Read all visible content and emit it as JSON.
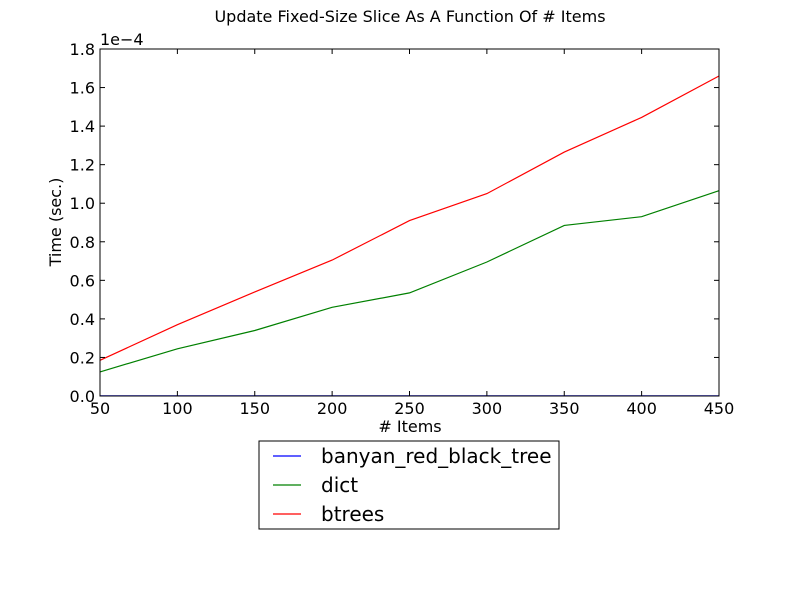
{
  "chart_data": {
    "type": "line",
    "title": "Update Fixed-Size Slice As A Function Of # Items",
    "xlabel": "# Items",
    "ylabel": "Time (sec.)",
    "y_scale_note": "1e−4",
    "xlim": [
      50,
      450
    ],
    "ylim": [
      0.0,
      1.8
    ],
    "x_ticks": [
      50,
      100,
      150,
      200,
      250,
      300,
      350,
      400,
      450
    ],
    "x_tick_labels": [
      "50",
      "100",
      "150",
      "200",
      "250",
      "300",
      "350",
      "400",
      "450"
    ],
    "y_ticks": [
      0.0,
      0.2,
      0.4,
      0.6,
      0.8,
      1.0,
      1.2,
      1.4,
      1.6,
      1.8
    ],
    "y_tick_labels": [
      "0.0",
      "0.2",
      "0.4",
      "0.6",
      "0.8",
      "1.0",
      "1.2",
      "1.4",
      "1.6",
      "1.8"
    ],
    "grid": false,
    "legend_placement": "below",
    "x": [
      50,
      100,
      150,
      200,
      250,
      300,
      350,
      400,
      450
    ],
    "series": [
      {
        "name": "banyan_red_black_tree",
        "color": "#0000ff",
        "values": [
          0.001,
          0.001,
          0.001,
          0.001,
          0.001,
          0.001,
          0.001,
          0.001,
          0.001
        ]
      },
      {
        "name": "dict",
        "color": "#008000",
        "values": [
          0.125,
          0.245,
          0.34,
          0.46,
          0.535,
          0.695,
          0.885,
          0.93,
          1.065
        ]
      },
      {
        "name": "btrees",
        "color": "#ff0000",
        "values": [
          0.185,
          0.37,
          0.54,
          0.705,
          0.91,
          1.05,
          1.265,
          1.445,
          1.66
        ]
      }
    ]
  }
}
